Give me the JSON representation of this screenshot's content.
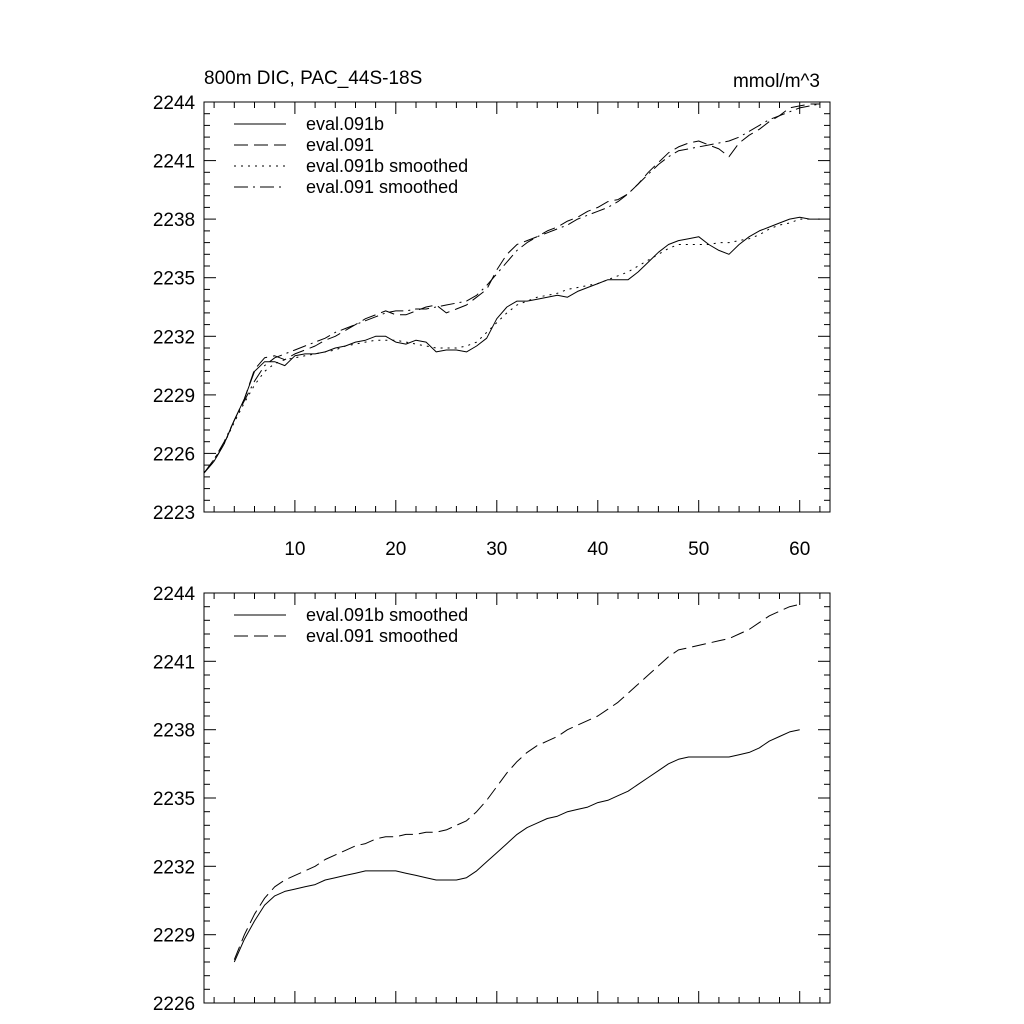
{
  "chart_data": [
    {
      "type": "line",
      "title": "800m DIC, PAC_44S-18S",
      "units": "mmol/m^3",
      "xlim": [
        1,
        63
      ],
      "ylim": [
        2223,
        2244
      ],
      "xticks": [
        10,
        20,
        30,
        40,
        50,
        60
      ],
      "yticks": [
        2223,
        2226,
        2229,
        2232,
        2235,
        2238,
        2241,
        2244
      ],
      "legend_placement": "top-left",
      "series": [
        {
          "name": "eval.091b",
          "style": "solid",
          "x": [
            1,
            2,
            3,
            4,
            5,
            6,
            7,
            8,
            9,
            10,
            11,
            12,
            13,
            14,
            15,
            16,
            17,
            18,
            19,
            20,
            21,
            22,
            23,
            24,
            25,
            26,
            27,
            28,
            29,
            30,
            31,
            32,
            33,
            34,
            35,
            36,
            37,
            38,
            39,
            40,
            41,
            42,
            43,
            44,
            45,
            46,
            47,
            48,
            49,
            50,
            51,
            52,
            53,
            54,
            55,
            56,
            57,
            58,
            59,
            60,
            61,
            62
          ],
          "values": [
            2225.0,
            2225.6,
            2226.5,
            2227.7,
            2228.8,
            2230.2,
            2230.7,
            2230.7,
            2230.5,
            2231.0,
            2231.1,
            2231.1,
            2231.2,
            2231.4,
            2231.5,
            2231.7,
            2231.8,
            2232.0,
            2232.0,
            2231.7,
            2231.6,
            2231.8,
            2231.7,
            2231.2,
            2231.3,
            2231.3,
            2231.2,
            2231.5,
            2231.9,
            2232.9,
            2233.5,
            2233.8,
            2233.8,
            2233.9,
            2234.0,
            2234.1,
            2234.0,
            2234.3,
            2234.5,
            2234.7,
            2234.9,
            2234.9,
            2234.9,
            2235.3,
            2235.8,
            2236.3,
            2236.7,
            2236.9,
            2237.0,
            2237.1,
            2236.7,
            2236.4,
            2236.2,
            2236.7,
            2237.1,
            2237.4,
            2237.6,
            2237.8,
            2238.0,
            2238.1,
            2238.0,
            2238.0
          ]
        },
        {
          "name": "eval.091",
          "style": "dashed",
          "x": [
            1,
            2,
            3,
            4,
            5,
            6,
            7,
            8,
            9,
            10,
            11,
            12,
            13,
            14,
            15,
            16,
            17,
            18,
            19,
            20,
            21,
            22,
            23,
            24,
            25,
            26,
            27,
            28,
            29,
            30,
            31,
            32,
            33,
            34,
            35,
            36,
            37,
            38,
            39,
            40,
            41,
            42,
            43,
            44,
            45,
            46,
            47,
            48,
            49,
            50,
            51,
            52,
            53,
            54,
            55,
            56,
            57,
            58,
            59,
            60,
            61,
            62
          ],
          "values": [
            2225.0,
            2225.6,
            2226.5,
            2227.7,
            2228.8,
            2230.3,
            2230.9,
            2231.0,
            2230.8,
            2231.1,
            2231.3,
            2231.5,
            2231.8,
            2232.0,
            2232.3,
            2232.6,
            2232.9,
            2233.1,
            2233.3,
            2233.1,
            2233.1,
            2233.3,
            2233.5,
            2233.6,
            2233.2,
            2233.4,
            2233.6,
            2234.0,
            2234.4,
            2235.4,
            2236.2,
            2236.7,
            2236.9,
            2237.1,
            2237.4,
            2237.6,
            2237.9,
            2238.1,
            2238.4,
            2238.6,
            2238.9,
            2239.0,
            2239.3,
            2239.8,
            2240.4,
            2240.9,
            2241.4,
            2241.7,
            2241.9,
            2242.0,
            2241.8,
            2241.6,
            2241.2,
            2241.9,
            2242.3,
            2242.6,
            2243.0,
            2243.3,
            2243.7,
            2243.8,
            2243.9,
            2243.9
          ]
        },
        {
          "name": "eval.091b smoothed",
          "style": "dotted",
          "x": [
            1,
            2,
            3,
            4,
            5,
            6,
            7,
            8,
            9,
            10,
            11,
            12,
            13,
            14,
            15,
            16,
            17,
            18,
            19,
            20,
            21,
            22,
            23,
            24,
            25,
            26,
            27,
            28,
            29,
            30,
            31,
            32,
            33,
            34,
            35,
            36,
            37,
            38,
            39,
            40,
            41,
            42,
            43,
            44,
            45,
            46,
            47,
            48,
            49,
            50,
            51,
            52,
            53,
            54,
            55,
            56,
            57,
            58,
            59,
            60,
            61
          ],
          "values": [
            2225.0,
            2225.7,
            2226.5,
            2227.6,
            2228.6,
            2229.5,
            2230.2,
            2230.6,
            2230.8,
            2230.9,
            2231.0,
            2231.1,
            2231.2,
            2231.3,
            2231.5,
            2231.6,
            2231.7,
            2231.8,
            2231.8,
            2231.8,
            2231.7,
            2231.6,
            2231.5,
            2231.4,
            2231.4,
            2231.4,
            2231.5,
            2231.7,
            2232.2,
            2232.7,
            2233.2,
            2233.6,
            2233.8,
            2234.0,
            2234.1,
            2234.2,
            2234.4,
            2234.5,
            2234.6,
            2234.7,
            2234.9,
            2235.1,
            2235.3,
            2235.6,
            2235.9,
            2236.2,
            2236.5,
            2236.7,
            2236.7,
            2236.7,
            2236.7,
            2236.8,
            2236.8,
            2236.9,
            2237.0,
            2237.2,
            2237.5,
            2237.7,
            2237.8,
            2238.0,
            2238.0
          ]
        },
        {
          "name": "eval.091 smoothed",
          "style": "dashdot",
          "x": [
            1,
            2,
            3,
            4,
            5,
            6,
            7,
            8,
            9,
            10,
            11,
            12,
            13,
            14,
            15,
            16,
            17,
            18,
            19,
            20,
            21,
            22,
            23,
            24,
            25,
            26,
            27,
            28,
            29,
            30,
            31,
            32,
            33,
            34,
            35,
            36,
            37,
            38,
            39,
            40,
            41,
            42,
            43,
            44,
            45,
            46,
            47,
            48,
            49,
            50,
            51,
            52,
            53,
            54,
            55,
            56,
            57,
            58,
            59,
            60,
            61,
            62
          ],
          "values": [
            2225.0,
            2225.7,
            2226.6,
            2227.7,
            2228.7,
            2229.7,
            2230.5,
            2230.9,
            2231.1,
            2231.3,
            2231.5,
            2231.7,
            2231.9,
            2232.2,
            2232.4,
            2232.6,
            2232.8,
            2233.0,
            2233.2,
            2233.3,
            2233.3,
            2233.4,
            2233.4,
            2233.5,
            2233.6,
            2233.7,
            2233.8,
            2234.1,
            2234.6,
            2235.2,
            2235.8,
            2236.4,
            2236.8,
            2237.1,
            2237.3,
            2237.5,
            2237.7,
            2238.0,
            2238.2,
            2238.4,
            2238.6,
            2238.9,
            2239.3,
            2239.8,
            2240.3,
            2240.8,
            2241.2,
            2241.5,
            2241.6,
            2241.7,
            2241.8,
            2241.9,
            2242.0,
            2242.2,
            2242.5,
            2242.8,
            2243.1,
            2243.3,
            2243.5,
            2243.7,
            2243.8,
            2243.9
          ]
        }
      ]
    },
    {
      "type": "line",
      "title": "",
      "xlim": [
        1,
        63
      ],
      "ylim": [
        2226,
        2244
      ],
      "xticks": [
        10,
        20,
        30,
        40,
        50,
        60
      ],
      "yticks": [
        2226,
        2229,
        2232,
        2235,
        2238,
        2241,
        2244
      ],
      "legend_placement": "top-left",
      "series": [
        {
          "name": "eval.091b smoothed",
          "style": "solid",
          "x": [
            4,
            5,
            6,
            7,
            8,
            9,
            10,
            11,
            12,
            13,
            14,
            15,
            16,
            17,
            18,
            19,
            20,
            21,
            22,
            23,
            24,
            25,
            26,
            27,
            28,
            29,
            30,
            31,
            32,
            33,
            34,
            35,
            36,
            37,
            38,
            39,
            40,
            41,
            42,
            43,
            44,
            45,
            46,
            47,
            48,
            49,
            50,
            51,
            52,
            53,
            54,
            55,
            56,
            57,
            58,
            59,
            60
          ],
          "values": [
            2227.8,
            2228.8,
            2229.6,
            2230.3,
            2230.7,
            2230.9,
            2231.0,
            2231.1,
            2231.2,
            2231.4,
            2231.5,
            2231.6,
            2231.7,
            2231.8,
            2231.8,
            2231.8,
            2231.8,
            2231.7,
            2231.6,
            2231.5,
            2231.4,
            2231.4,
            2231.4,
            2231.5,
            2231.8,
            2232.2,
            2232.6,
            2233.0,
            2233.4,
            2233.7,
            2233.9,
            2234.1,
            2234.2,
            2234.4,
            2234.5,
            2234.6,
            2234.8,
            2234.9,
            2235.1,
            2235.3,
            2235.6,
            2235.9,
            2236.2,
            2236.5,
            2236.7,
            2236.8,
            2236.8,
            2236.8,
            2236.8,
            2236.8,
            2236.9,
            2237.0,
            2237.2,
            2237.5,
            2237.7,
            2237.9,
            2238.0
          ]
        },
        {
          "name": "eval.091 smoothed",
          "style": "dashed",
          "x": [
            4,
            5,
            6,
            7,
            8,
            9,
            10,
            11,
            12,
            13,
            14,
            15,
            16,
            17,
            18,
            19,
            20,
            21,
            22,
            23,
            24,
            25,
            26,
            27,
            28,
            29,
            30,
            31,
            32,
            33,
            34,
            35,
            36,
            37,
            38,
            39,
            40,
            41,
            42,
            43,
            44,
            45,
            46,
            47,
            48,
            49,
            50,
            51,
            52,
            53,
            54,
            55,
            56,
            57,
            58,
            59,
            60
          ],
          "values": [
            2227.9,
            2229.0,
            2229.9,
            2230.6,
            2231.1,
            2231.4,
            2231.6,
            2231.8,
            2232.0,
            2232.3,
            2232.5,
            2232.7,
            2232.9,
            2233.0,
            2233.2,
            2233.3,
            2233.3,
            2233.4,
            2233.4,
            2233.5,
            2233.5,
            2233.6,
            2233.8,
            2234.0,
            2234.4,
            2234.9,
            2235.5,
            2236.1,
            2236.6,
            2237.0,
            2237.3,
            2237.5,
            2237.7,
            2238.0,
            2238.2,
            2238.4,
            2238.6,
            2238.9,
            2239.2,
            2239.6,
            2240.0,
            2240.4,
            2240.8,
            2241.2,
            2241.5,
            2241.6,
            2241.7,
            2241.8,
            2241.9,
            2242.0,
            2242.2,
            2242.4,
            2242.7,
            2243.0,
            2243.2,
            2243.4,
            2243.5
          ]
        }
      ]
    }
  ]
}
